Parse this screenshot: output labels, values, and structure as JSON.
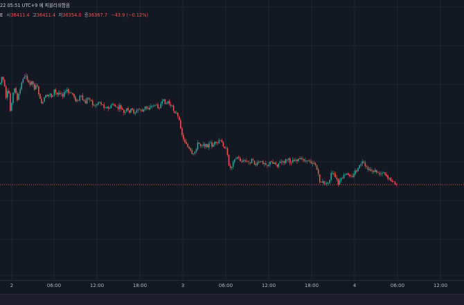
{
  "header": {
    "status_line": "22 05:51 UTC+9 에 피블리쉬함음",
    "ohlc": {
      "prefix": "E",
      "open_label": "시",
      "open": "36411.4",
      "high_label": "고",
      "high": "36411.4",
      "low_label": "저",
      "low": "36354.0",
      "close_label": "종",
      "close": "36367.7",
      "change": "−43.9 (−0.12%)"
    }
  },
  "colors": {
    "background": "#141823",
    "up": "#26a69a",
    "down": "#ef5350",
    "price_line": "#ef5350",
    "grid": "#1f2430",
    "axis_text": "#b2b5be"
  },
  "x_axis": {
    "ticks": [
      "2",
      "06:00",
      "12:00",
      "18:00",
      "3",
      "06:00",
      "12:00",
      "18:00",
      "4",
      "06:00",
      "12:00"
    ]
  },
  "chart_data": {
    "type": "candlestick",
    "title": "",
    "xlabel": "",
    "ylabel": "",
    "grid": true,
    "last_close": 36367.7,
    "close_path": [
      [
        0,
        0.3
      ],
      [
        3,
        0.27
      ],
      [
        6,
        0.3
      ],
      [
        9,
        0.36
      ],
      [
        12,
        0.31
      ],
      [
        15,
        0.4
      ],
      [
        18,
        0.34
      ],
      [
        22,
        0.31
      ],
      [
        25,
        0.36
      ],
      [
        28,
        0.33
      ],
      [
        31,
        0.3
      ],
      [
        34,
        0.27
      ],
      [
        36,
        0.28
      ],
      [
        38,
        0.26
      ],
      [
        40,
        0.29
      ],
      [
        43,
        0.31
      ],
      [
        46,
        0.28
      ],
      [
        49,
        0.32
      ],
      [
        52,
        0.3
      ],
      [
        55,
        0.32
      ],
      [
        58,
        0.36
      ],
      [
        62,
        0.37
      ],
      [
        65,
        0.34
      ],
      [
        68,
        0.35
      ],
      [
        72,
        0.33
      ],
      [
        75,
        0.35
      ],
      [
        78,
        0.32
      ],
      [
        82,
        0.34
      ],
      [
        85,
        0.33
      ],
      [
        88,
        0.33
      ],
      [
        91,
        0.34
      ],
      [
        94,
        0.33
      ],
      [
        97,
        0.32
      ],
      [
        100,
        0.34
      ],
      [
        103,
        0.33
      ],
      [
        106,
        0.34
      ],
      [
        110,
        0.36
      ],
      [
        113,
        0.36
      ],
      [
        116,
        0.34
      ],
      [
        120,
        0.36
      ],
      [
        123,
        0.37
      ],
      [
        126,
        0.35
      ],
      [
        130,
        0.35
      ],
      [
        133,
        0.37
      ],
      [
        136,
        0.38
      ],
      [
        140,
        0.37
      ],
      [
        143,
        0.36
      ],
      [
        146,
        0.37
      ],
      [
        150,
        0.38
      ],
      [
        153,
        0.38
      ],
      [
        156,
        0.39
      ],
      [
        160,
        0.38
      ],
      [
        163,
        0.37
      ],
      [
        166,
        0.38
      ],
      [
        170,
        0.39
      ],
      [
        173,
        0.38
      ],
      [
        176,
        0.39
      ],
      [
        180,
        0.41
      ],
      [
        183,
        0.39
      ],
      [
        186,
        0.4
      ],
      [
        190,
        0.39
      ],
      [
        193,
        0.4
      ],
      [
        196,
        0.4
      ],
      [
        200,
        0.39
      ],
      [
        203,
        0.39
      ],
      [
        206,
        0.4
      ],
      [
        210,
        0.38
      ],
      [
        213,
        0.39
      ],
      [
        216,
        0.38
      ],
      [
        220,
        0.38
      ],
      [
        223,
        0.37
      ],
      [
        226,
        0.38
      ],
      [
        230,
        0.38
      ],
      [
        233,
        0.37
      ],
      [
        236,
        0.36
      ],
      [
        240,
        0.37
      ],
      [
        243,
        0.36
      ],
      [
        246,
        0.38
      ],
      [
        248,
        0.38
      ],
      [
        250,
        0.39
      ],
      [
        253,
        0.4
      ],
      [
        256,
        0.41
      ],
      [
        258,
        0.43
      ],
      [
        260,
        0.44
      ],
      [
        262,
        0.47
      ],
      [
        264,
        0.49
      ],
      [
        266,
        0.51
      ],
      [
        268,
        0.5
      ],
      [
        270,
        0.52
      ],
      [
        272,
        0.53
      ],
      [
        275,
        0.54
      ],
      [
        278,
        0.56
      ],
      [
        280,
        0.55
      ],
      [
        283,
        0.53
      ],
      [
        286,
        0.51
      ],
      [
        290,
        0.52
      ],
      [
        293,
        0.51
      ],
      [
        296,
        0.52
      ],
      [
        300,
        0.52
      ],
      [
        303,
        0.51
      ],
      [
        306,
        0.52
      ],
      [
        310,
        0.51
      ],
      [
        313,
        0.52
      ],
      [
        316,
        0.5
      ],
      [
        320,
        0.51
      ],
      [
        323,
        0.52
      ],
      [
        326,
        0.53
      ],
      [
        328,
        0.55
      ],
      [
        330,
        0.58
      ],
      [
        332,
        0.6
      ],
      [
        334,
        0.6
      ],
      [
        336,
        0.58
      ],
      [
        338,
        0.56
      ],
      [
        340,
        0.57
      ],
      [
        343,
        0.56
      ],
      [
        346,
        0.57
      ],
      [
        350,
        0.58
      ],
      [
        353,
        0.57
      ],
      [
        356,
        0.58
      ],
      [
        360,
        0.58
      ],
      [
        363,
        0.57
      ],
      [
        366,
        0.58
      ],
      [
        370,
        0.59
      ],
      [
        373,
        0.58
      ],
      [
        376,
        0.58
      ],
      [
        380,
        0.58
      ],
      [
        383,
        0.58
      ],
      [
        386,
        0.59
      ],
      [
        390,
        0.58
      ],
      [
        393,
        0.58
      ],
      [
        396,
        0.58
      ],
      [
        400,
        0.59
      ],
      [
        403,
        0.58
      ],
      [
        406,
        0.58
      ],
      [
        410,
        0.58
      ],
      [
        413,
        0.57
      ],
      [
        416,
        0.57
      ],
      [
        420,
        0.58
      ],
      [
        423,
        0.57
      ],
      [
        426,
        0.57
      ],
      [
        430,
        0.57
      ],
      [
        433,
        0.57
      ],
      [
        436,
        0.57
      ],
      [
        440,
        0.57
      ],
      [
        443,
        0.58
      ],
      [
        446,
        0.57
      ],
      [
        450,
        0.58
      ],
      [
        453,
        0.58
      ],
      [
        456,
        0.59
      ],
      [
        458,
        0.61
      ],
      [
        460,
        0.63
      ],
      [
        462,
        0.65
      ],
      [
        464,
        0.65
      ],
      [
        466,
        0.65
      ],
      [
        468,
        0.66
      ],
      [
        470,
        0.65
      ],
      [
        473,
        0.66
      ],
      [
        476,
        0.64
      ],
      [
        478,
        0.62
      ],
      [
        480,
        0.62
      ],
      [
        483,
        0.63
      ],
      [
        486,
        0.64
      ],
      [
        488,
        0.66
      ],
      [
        490,
        0.65
      ],
      [
        493,
        0.64
      ],
      [
        496,
        0.63
      ],
      [
        500,
        0.62
      ],
      [
        503,
        0.63
      ],
      [
        506,
        0.62
      ],
      [
        510,
        0.63
      ],
      [
        513,
        0.61
      ],
      [
        516,
        0.61
      ],
      [
        518,
        0.6
      ],
      [
        520,
        0.59
      ],
      [
        522,
        0.58
      ],
      [
        524,
        0.58
      ],
      [
        526,
        0.59
      ],
      [
        528,
        0.6
      ],
      [
        530,
        0.6
      ],
      [
        533,
        0.61
      ],
      [
        536,
        0.61
      ],
      [
        540,
        0.61
      ],
      [
        543,
        0.61
      ],
      [
        546,
        0.62
      ],
      [
        550,
        0.62
      ],
      [
        553,
        0.61
      ],
      [
        556,
        0.62
      ],
      [
        559,
        0.63
      ],
      [
        562,
        0.64
      ],
      [
        565,
        0.64
      ],
      [
        568,
        0.65
      ],
      [
        571,
        0.66
      ],
      [
        573,
        0.66
      ]
    ]
  }
}
